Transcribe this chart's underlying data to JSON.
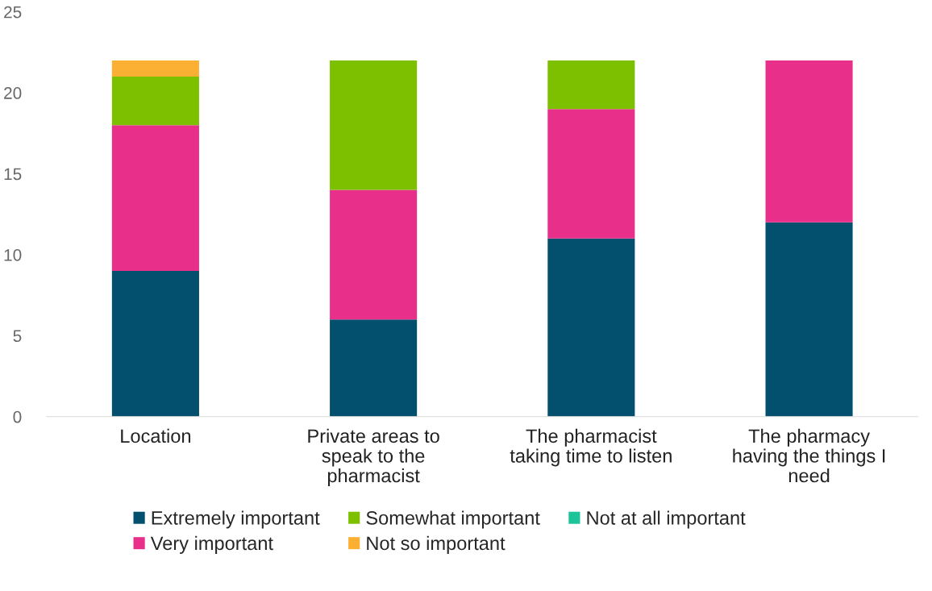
{
  "chart_data": {
    "type": "bar",
    "stacked": true,
    "categories": [
      "Location",
      "Private areas to speak to the pharmacist",
      "The pharmacist taking time to listen",
      "The pharmacy having the things I need"
    ],
    "series": [
      {
        "name": "Extremely important",
        "color": "#02506e",
        "values": [
          9,
          6,
          11,
          12
        ]
      },
      {
        "name": "Very important",
        "color": "#e8308a",
        "values": [
          9,
          8,
          8,
          10
        ]
      },
      {
        "name": "Somewhat important",
        "color": "#7dc000",
        "values": [
          3,
          8,
          3,
          0
        ]
      },
      {
        "name": "Not so important",
        "color": "#fbb034",
        "values": [
          1,
          0,
          0,
          0
        ]
      },
      {
        "name": "Not at all important",
        "color": "#1dc49a",
        "values": [
          0,
          0,
          0,
          0
        ]
      }
    ],
    "ylim": [
      0,
      25
    ],
    "yticks": [
      0,
      5,
      10,
      15,
      20,
      25
    ],
    "legend": "bottom"
  }
}
